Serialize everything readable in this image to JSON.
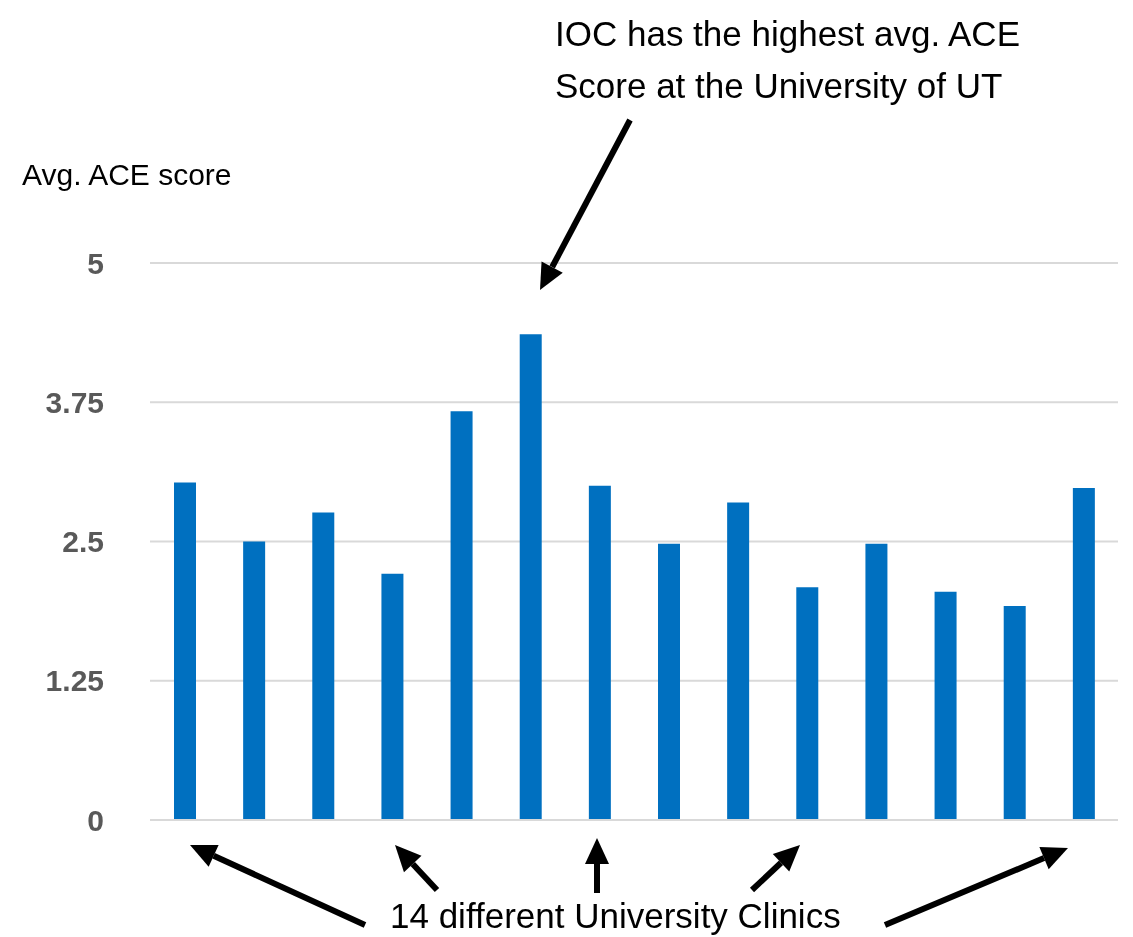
{
  "chart_data": {
    "type": "bar",
    "ylabel": "Avg. ACE score",
    "categories": [
      null,
      null,
      null,
      null,
      null,
      null,
      null,
      null,
      null,
      null,
      null,
      null,
      null,
      null
    ],
    "values": [
      3.03,
      2.5,
      2.76,
      2.21,
      3.67,
      4.36,
      3.0,
      2.48,
      2.85,
      2.09,
      2.48,
      2.05,
      1.92,
      2.98
    ],
    "color": "#0070c0",
    "ylim": [
      0,
      5
    ],
    "yticks": [
      0,
      1.25,
      2.5,
      3.75,
      5
    ],
    "grid": "y",
    "legend": false,
    "annotations": [
      "IOC has the highest avg. ACE Score at the University of UT",
      "14 different University Clinics"
    ]
  }
}
